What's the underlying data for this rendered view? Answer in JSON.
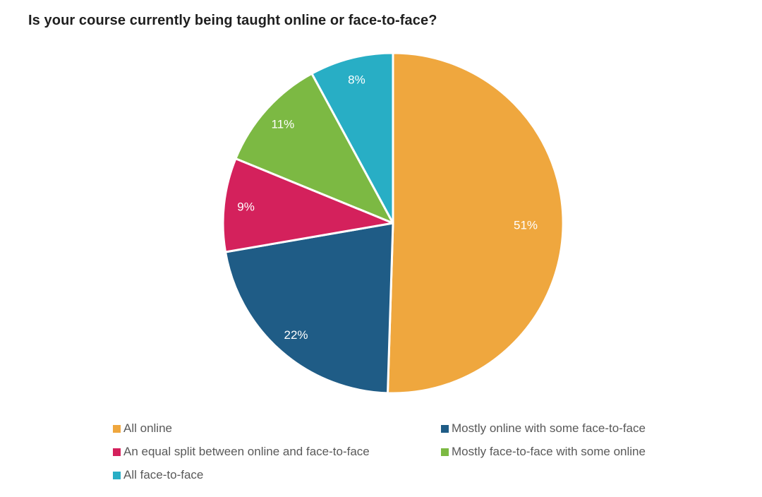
{
  "title": "Is your course currently being taught online or face-to-face?",
  "chart_data": {
    "type": "pie",
    "title": "Is your course currently being taught online or face-to-face?",
    "start_angle_deg": 0,
    "direction": "clockwise",
    "data_labels": "percent",
    "data_label_color": "#ffffff",
    "legend_position": "bottom",
    "legend_text_color": "#595959",
    "slices": [
      {
        "label": "All online",
        "value": 51,
        "percent_label": "51%",
        "color": "#EFA73E"
      },
      {
        "label": "Mostly online with some face-to-face",
        "value": 22,
        "percent_label": "22%",
        "color": "#1F5C86"
      },
      {
        "label": "An equal split between online and face-to-face",
        "value": 9,
        "percent_label": "9%",
        "color": "#D4215C"
      },
      {
        "label": "Mostly face-to-face with some online",
        "value": 11,
        "percent_label": "11%",
        "color": "#7CB943"
      },
      {
        "label": "All face-to-face",
        "value": 8,
        "percent_label": "8%",
        "color": "#28AEC5"
      }
    ]
  }
}
